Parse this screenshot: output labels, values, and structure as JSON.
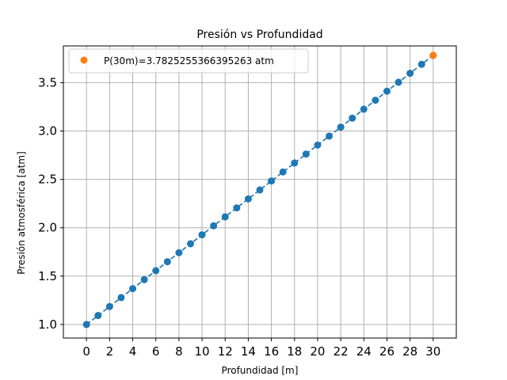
{
  "chart_data": {
    "type": "line",
    "title": "Presión vs Profundidad",
    "xlabel": "Profundidad [m]",
    "ylabel": "Presión atmosférica [atm]",
    "xlim": [
      -2.0,
      32.0
    ],
    "ylim": [
      0.86,
      3.88
    ],
    "xticks": [
      0,
      2,
      4,
      6,
      8,
      10,
      12,
      14,
      16,
      18,
      20,
      22,
      24,
      26,
      28,
      30
    ],
    "yticks": [
      1.0,
      1.5,
      2.0,
      2.5,
      3.0,
      3.5
    ],
    "ytick_labels": [
      "1.0",
      "1.5",
      "2.0",
      "2.5",
      "3.0",
      "3.5"
    ],
    "grid": true,
    "legend": {
      "position": "top-left",
      "entries": [
        "P(30m)=3.7825255366395263 atm"
      ]
    },
    "colors": {
      "series": "#1f77b4",
      "highlight": "#ff7f0e",
      "grid": "#b0b0b0"
    },
    "series": [
      {
        "style": "dashed-line-with-markers",
        "x": [
          0,
          1,
          2,
          3,
          4,
          5,
          6,
          7,
          8,
          9,
          10,
          11,
          12,
          13,
          14,
          15,
          16,
          17,
          18,
          19,
          20,
          21,
          22,
          23,
          24,
          25,
          26,
          27,
          28,
          29,
          30
        ],
        "values": [
          1.0,
          1.0927508,
          1.1855017,
          1.2782525,
          1.3710034,
          1.4637543,
          1.5565051,
          1.649256,
          1.7420068,
          1.8347577,
          1.9275085,
          2.0202594,
          2.1130102,
          2.2057611,
          2.2985119,
          2.3912628,
          2.4840136,
          2.5767645,
          2.6695153,
          2.7622662,
          2.855017,
          2.9477679,
          3.0405187,
          3.1332696,
          3.2260204,
          3.3187713,
          3.4115221,
          3.504273,
          3.5970238,
          3.6897747,
          3.7825255
        ]
      },
      {
        "name": "P(30m)=3.7825255366395263 atm",
        "style": "marker",
        "x": [
          30
        ],
        "values": [
          3.7825255366395263
        ]
      }
    ]
  }
}
